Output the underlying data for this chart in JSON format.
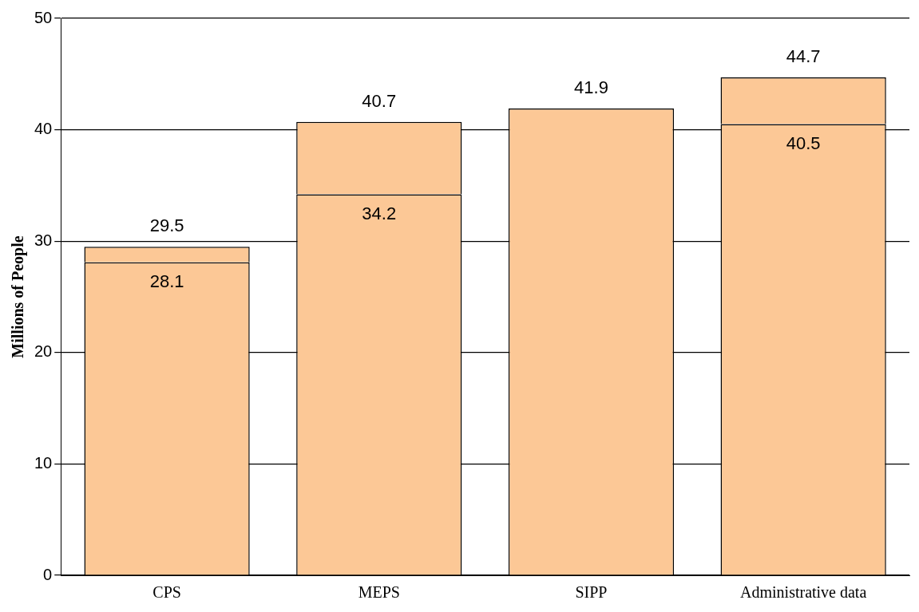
{
  "chart_data": {
    "type": "bar",
    "stacked": true,
    "ylabel": "Millions of People",
    "categories": [
      "CPS",
      "MEPS",
      "SIPP",
      "Administrative data"
    ],
    "series": [
      {
        "color": "#fcc896",
        "values": [
          28.1,
          34.2,
          41.9,
          40.5
        ],
        "value_labels": [
          "28.1",
          "34.2",
          null,
          "40.5"
        ]
      },
      {
        "color": "#fcc896",
        "values": [
          1.4,
          6.5,
          null,
          4.2
        ]
      }
    ],
    "totals": [
      "29.5",
      "40.7",
      "41.9",
      "44.7"
    ],
    "ylim": [
      0,
      50
    ],
    "yticks": [
      0,
      10,
      20,
      30,
      40,
      50
    ],
    "grid": "y"
  }
}
